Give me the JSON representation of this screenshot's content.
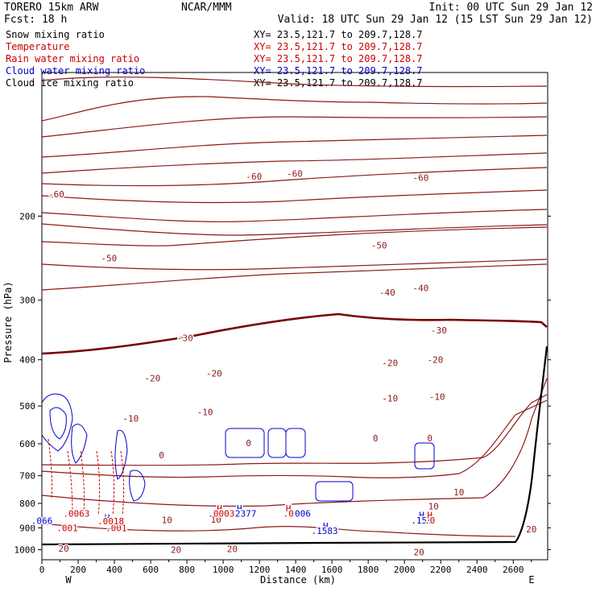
{
  "header": {
    "model": "TORERO  15km ARW",
    "center": "NCAR/MMM",
    "init": "Init: 00 UTC Sun 29 Jan 12",
    "fcst": "Fcst:   18 h",
    "valid": "Valid: 18 UTC Sun 29 Jan 12 (15 LST Sun 29 Jan 12)"
  },
  "fields": [
    {
      "label": "Snow mixing ratio",
      "xy": "",
      "color": "#000000"
    },
    {
      "label": "Temperature",
      "xy": "XY=  23.5,121.7 to 209.7,128.7",
      "color": "#cc0000"
    },
    {
      "label": "Rain water mixing ratio",
      "xy": "XY=  23.5,121.7 to 209.7,128.7",
      "color": "#cc0000"
    },
    {
      "label": "Cloud water mixing ratio",
      "xy": "XY=  23.5,121.7 to 209.7,128.7",
      "color": "#0000cc"
    },
    {
      "label": "Cloud ice mixing ratio",
      "xy": "XY=  23.5,121.7 to 209.7,128.7",
      "color": "#000000"
    }
  ],
  "snow_xy": "XY=  23.5,121.7 to 209.7,128.7",
  "colors": {
    "temperature": "#8b1a1a",
    "zero_isotherm": "#7a0000",
    "cloud_water": "#0000cc",
    "rain": "#cc0000",
    "terrain": "#000000"
  },
  "chart_data": {
    "type": "line",
    "xlabel": "Distance (km)",
    "ylabel": "Pressure (hPa)",
    "xlim": [
      0,
      2790
    ],
    "ylim": [
      1050,
      100
    ],
    "y_scale": "log",
    "x_ticks": [
      "0",
      "200",
      "400",
      "600",
      "800",
      "1000",
      "1200",
      "1400",
      "1600",
      "1800",
      "2000",
      "2200",
      "2400",
      "2600"
    ],
    "y_ticks": [
      "200",
      "300",
      "400",
      "500",
      "600",
      "700",
      "800",
      "900",
      "1000"
    ],
    "x_end_labels": {
      "left": "W",
      "right": "E"
    },
    "isotherm_labels": [
      {
        "text": "-60",
        "x": 80,
        "p": 180
      },
      {
        "text": "-60",
        "x": 1170,
        "p": 165
      },
      {
        "text": "-60",
        "x": 1395,
        "p": 163
      },
      {
        "text": "-60",
        "x": 2090,
        "p": 166
      },
      {
        "text": "-50",
        "x": 370,
        "p": 245
      },
      {
        "text": "-50",
        "x": 1860,
        "p": 230
      },
      {
        "text": "-40",
        "x": 1905,
        "p": 289
      },
      {
        "text": "-40",
        "x": 2090,
        "p": 283
      },
      {
        "text": "-30",
        "x": 790,
        "p": 360
      },
      {
        "text": "-30",
        "x": 2190,
        "p": 347
      },
      {
        "text": "-20",
        "x": 610,
        "p": 437
      },
      {
        "text": "-20",
        "x": 950,
        "p": 427
      },
      {
        "text": "-20",
        "x": 1920,
        "p": 406
      },
      {
        "text": "-20",
        "x": 2170,
        "p": 400
      },
      {
        "text": "-10",
        "x": 490,
        "p": 531
      },
      {
        "text": "-10",
        "x": 900,
        "p": 515
      },
      {
        "text": "-10",
        "x": 1920,
        "p": 482
      },
      {
        "text": "-10",
        "x": 2180,
        "p": 478
      },
      {
        "text": "0",
        "x": 660,
        "p": 634
      },
      {
        "text": "0",
        "x": 1140,
        "p": 598
      },
      {
        "text": "0",
        "x": 1840,
        "p": 584
      },
      {
        "text": "0",
        "x": 2140,
        "p": 584
      },
      {
        "text": "10",
        "x": 690,
        "p": 867
      },
      {
        "text": "10",
        "x": 960,
        "p": 864
      },
      {
        "text": "10",
        "x": 2300,
        "p": 757
      },
      {
        "text": "10",
        "x": 2160,
        "p": 811
      },
      {
        "text": "20",
        "x": 120,
        "p": 995
      },
      {
        "text": "20",
        "x": 740,
        "p": 1000
      },
      {
        "text": "20",
        "x": 1050,
        "p": 997
      },
      {
        "text": "20",
        "x": 2080,
        "p": 1012
      },
      {
        "text": "20",
        "x": 2700,
        "p": 905
      }
    ],
    "cloud_water_labels": [
      {
        "text": "H",
        "x": 1090,
        "p": 818
      },
      {
        "text": ".2377",
        "x": 1110,
        "p": 840
      },
      {
        "text": "H",
        "x": 1565,
        "p": 891
      },
      {
        "text": ".1583",
        "x": 1560,
        "p": 913
      },
      {
        "text": "H",
        "x": 2095,
        "p": 847
      },
      {
        "text": ".158",
        "x": 2095,
        "p": 868
      },
      {
        "text": ".2006",
        "x": 1410,
        "p": 840
      },
      {
        "text": ".066",
        "x": 0,
        "p": 870
      },
      {
        "text": "H",
        "x": 360,
        "p": 856
      }
    ],
    "rain_labels": [
      {
        "text": "H",
        "x": 980,
        "p": 818
      },
      {
        "text": ".0003",
        "x": 990,
        "p": 840
      },
      {
        "text": "H",
        "x": 1360,
        "p": 818
      },
      {
        "text": ".0",
        "x": 1360,
        "p": 840
      },
      {
        "text": "H",
        "x": 2140,
        "p": 847
      },
      {
        "text": ".0",
        "x": 2140,
        "p": 868
      },
      {
        "text": ".001",
        "x": 140,
        "p": 900
      },
      {
        "text": ".001",
        "x": 410,
        "p": 900
      },
      {
        "text": ".0018",
        "x": 380,
        "p": 872
      },
      {
        "text": ".0063",
        "x": 190,
        "p": 840
      }
    ]
  }
}
